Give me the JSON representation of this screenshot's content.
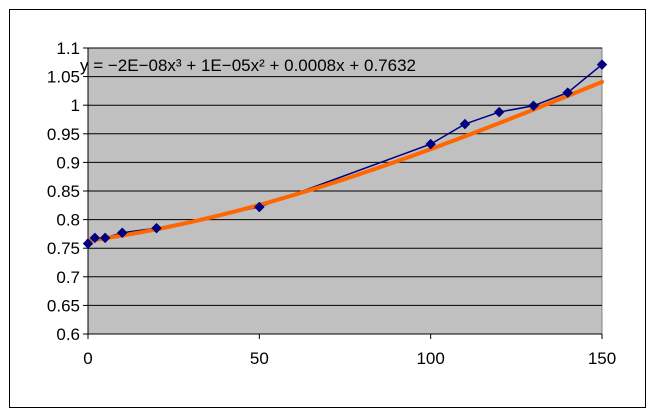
{
  "chart_data": {
    "type": "scatter",
    "title": "",
    "xlabel": "",
    "ylabel": "",
    "xlim": [
      0,
      150
    ],
    "ylim": [
      0.6,
      1.1
    ],
    "x_ticks": [
      0,
      50,
      100,
      150
    ],
    "y_ticks": [
      0.6,
      0.65,
      0.7,
      0.75,
      0.8,
      0.85,
      0.9,
      0.95,
      1,
      1.05,
      1.1
    ],
    "x_tick_labels": [
      "0",
      "50",
      "100",
      "150"
    ],
    "y_tick_labels": [
      "0.6",
      "0.65",
      "0.7",
      "0.75",
      "0.8",
      "0.85",
      "0.9",
      "0.95",
      "1",
      "1.05",
      "1.1"
    ],
    "grid": "horizontal",
    "legend": "none",
    "plot_background": "#c0c0c0",
    "series": [
      {
        "marker": "diamond",
        "line": true,
        "color": "#000080",
        "x": [
          0,
          2,
          5,
          10,
          20,
          50,
          100,
          110,
          120,
          130,
          140,
          150
        ],
        "y": [
          0.758,
          0.768,
          0.768,
          0.777,
          0.785,
          0.822,
          0.932,
          0.967,
          0.988,
          0.999,
          1.022,
          1.071
        ]
      }
    ],
    "trendline": {
      "type": "polynomial",
      "order": 3,
      "color": "#ff6600",
      "coefficients": [
        -2e-08,
        1e-05,
        0.0008,
        0.7632
      ],
      "equation_label": "y = −2E−08x³ + 1E−05x² + 0.0008x + 0.7632"
    }
  }
}
